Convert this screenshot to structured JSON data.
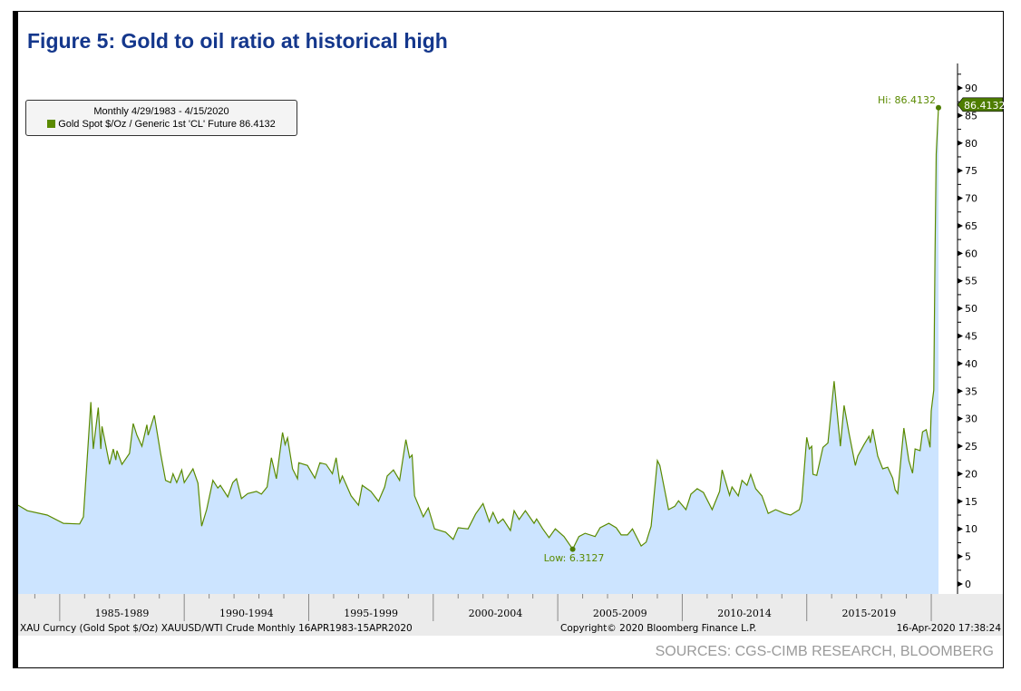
{
  "title": "Figure 5:  Gold to oil ratio at historical high",
  "sources": "SOURCES: CGS-CIMB RESEARCH, BLOOMBERG",
  "legend": {
    "period": "Monthly 4/29/1983 - 4/15/2020",
    "series": "Gold Spot $/Oz / Generic 1st 'CL' Future 86.4132"
  },
  "footer": {
    "left": "XAU Curncy (Gold Spot  $/Oz) XAUUSD/WTI Crude  Monthly 16APR1983-15APR2020",
    "center": "Copyright© 2020 Bloomberg Finance L.P.",
    "right": "16-Apr-2020 17:38:24"
  },
  "colors": {
    "title": "#14378c",
    "line": "#5a8a00",
    "fill": "#cce4ff",
    "band": "#ebebeb"
  },
  "chart_data": {
    "type": "area",
    "title": "Figure 5:  Gold to oil ratio at historical high",
    "yaxis_position": "right",
    "ylim": [
      0,
      90
    ],
    "yticks": [
      0,
      5,
      10,
      15,
      20,
      25,
      30,
      35,
      40,
      45,
      50,
      55,
      60,
      65,
      70,
      75,
      80,
      85,
      90
    ],
    "xlim": [
      1983.33,
      2020.29
    ],
    "xtick_labels": [
      "1985-1989",
      "1990-1994",
      "1995-1999",
      "2000-2004",
      "2005-2009",
      "2010-2014",
      "2015-2019"
    ],
    "xtick_bounds": [
      1985,
      1990,
      1995,
      2000,
      2005,
      2010,
      2015,
      2020
    ],
    "legend": "top-left",
    "grid": false,
    "annotations": {
      "high": {
        "label": "Hi: 86.4132",
        "x": 2020.29,
        "y": 86.4132
      },
      "low": {
        "label": "Low: 6.3127",
        "x": 2005.6,
        "y": 6.3127
      },
      "last": {
        "label": "86.4132",
        "y": 86.4132
      }
    },
    "series": [
      {
        "name": "Gold Spot $/Oz / Generic 1st 'CL' Future",
        "x": [
          1983.33,
          1983.7,
          1984.5,
          1985.15,
          1985.8,
          1985.95,
          1986.25,
          1986.35,
          1986.55,
          1986.65,
          1986.7,
          1987.0,
          1987.15,
          1987.25,
          1987.3,
          1987.5,
          1987.8,
          1987.95,
          1988.1,
          1988.3,
          1988.5,
          1988.55,
          1988.8,
          1989.05,
          1989.25,
          1989.45,
          1989.55,
          1989.7,
          1989.9,
          1990.0,
          1990.35,
          1990.55,
          1990.7,
          1990.9,
          1991.15,
          1991.35,
          1991.45,
          1991.75,
          1991.95,
          1992.1,
          1992.3,
          1992.55,
          1992.9,
          1993.1,
          1993.33,
          1993.5,
          1993.7,
          1993.95,
          1994.05,
          1994.15,
          1994.35,
          1994.55,
          1994.6,
          1994.95,
          1995.05,
          1995.25,
          1995.45,
          1995.7,
          1995.95,
          1996.1,
          1996.25,
          1996.35,
          1996.7,
          1997.0,
          1997.15,
          1997.5,
          1997.8,
          1998.05,
          1998.15,
          1998.4,
          1998.65,
          1998.9,
          1999.05,
          1999.15,
          1999.25,
          1999.6,
          1999.8,
          2000.05,
          2000.5,
          2000.8,
          2001.0,
          2001.4,
          2001.7,
          2002.0,
          2002.25,
          2002.4,
          2002.6,
          2002.8,
          2003.1,
          2003.25,
          2003.45,
          2003.7,
          2004.05,
          2004.15,
          2004.4,
          2004.65,
          2004.9,
          2005.25,
          2005.6,
          2005.85,
          2006.1,
          2006.5,
          2006.7,
          2007.05,
          2007.35,
          2007.55,
          2007.8,
          2008.0,
          2008.35,
          2008.55,
          2008.75,
          2009.0,
          2009.1,
          2009.45,
          2009.7,
          2009.85,
          2010.15,
          2010.35,
          2010.6,
          2010.85,
          2011.2,
          2011.5,
          2011.6,
          2011.9,
          2012.0,
          2012.25,
          2012.4,
          2012.6,
          2012.75,
          2012.95,
          2013.2,
          2013.45,
          2013.75,
          2014.1,
          2014.35,
          2014.7,
          2014.8,
          2015.0,
          2015.1,
          2015.2,
          2015.25,
          2015.4,
          2015.65,
          2015.85,
          2016.1,
          2016.35,
          2016.5,
          2016.7,
          2016.95,
          2017.05,
          2017.3,
          2017.5,
          2017.55,
          2017.65,
          2017.85,
          2018.05,
          2018.25,
          2018.45,
          2018.55,
          2018.65,
          2018.9,
          2019.1,
          2019.25,
          2019.35,
          2019.55,
          2019.65,
          2019.8,
          2019.95,
          2020.0,
          2020.1,
          2020.15,
          2020.2,
          2020.29
        ],
        "y": [
          14.3,
          13.3,
          12.5,
          11.0,
          10.9,
          12.2,
          33.0,
          24.5,
          32.0,
          24.5,
          28.6,
          21.7,
          24.5,
          22.5,
          24.2,
          21.7,
          23.7,
          29.1,
          27.0,
          25.0,
          28.9,
          27.0,
          30.6,
          23.7,
          18.8,
          18.4,
          20.0,
          18.4,
          20.7,
          18.4,
          20.9,
          18.3,
          10.5,
          13.5,
          18.8,
          17.4,
          17.9,
          15.8,
          18.4,
          19.1,
          15.5,
          16.4,
          16.8,
          16.3,
          17.6,
          22.9,
          19.1,
          27.5,
          25.3,
          26.5,
          20.9,
          19.1,
          22.0,
          21.5,
          20.7,
          19.2,
          22.0,
          21.7,
          20.0,
          22.9,
          18.4,
          19.6,
          16.0,
          14.3,
          17.9,
          16.8,
          15.0,
          17.6,
          19.6,
          20.7,
          18.8,
          26.2,
          22.9,
          23.4,
          16.0,
          12.2,
          13.8,
          10.0,
          9.4,
          8.1,
          10.2,
          10.0,
          12.7,
          14.6,
          11.3,
          13.0,
          11.0,
          11.8,
          9.7,
          13.3,
          11.7,
          13.3,
          11.0,
          11.8,
          10.0,
          8.4,
          10.0,
          8.6,
          6.3127,
          8.6,
          9.2,
          8.6,
          10.2,
          11.0,
          10.2,
          8.9,
          8.9,
          10.0,
          6.9,
          7.6,
          10.5,
          22.4,
          21.5,
          13.5,
          14.1,
          15.1,
          13.5,
          16.3,
          17.3,
          16.6,
          13.5,
          16.8,
          20.7,
          16.1,
          17.6,
          16.0,
          18.8,
          17.9,
          19.9,
          17.3,
          16.0,
          12.8,
          13.5,
          12.8,
          12.5,
          13.5,
          15.0,
          26.6,
          24.5,
          25.0,
          19.9,
          19.7,
          24.8,
          25.6,
          36.8,
          25.0,
          32.4,
          27.3,
          21.5,
          23.2,
          25.3,
          26.8,
          25.6,
          28.1,
          23.2,
          20.9,
          21.2,
          19.2,
          17.1,
          16.4,
          28.3,
          22.4,
          20.1,
          24.5,
          24.2,
          27.6,
          28.0,
          24.8,
          31.4,
          35.2,
          60.0,
          78.0,
          86.4132
        ]
      }
    ]
  }
}
